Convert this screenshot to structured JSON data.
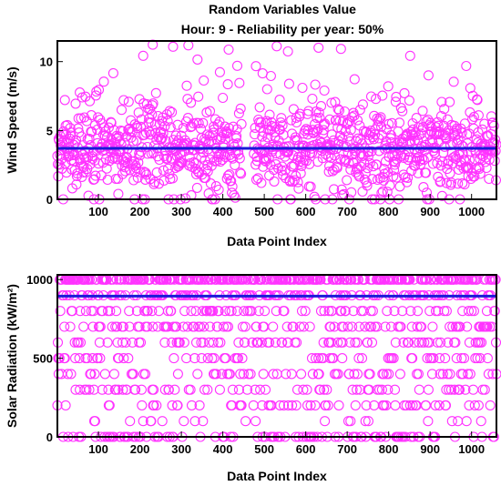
{
  "figure": {
    "title": "Random Variables Value",
    "subtitle": "Hour: 9 - Reliability per year: 50%"
  },
  "chart_data": [
    {
      "type": "scatter",
      "xlabel": "Data Point Index",
      "ylabel": "Wind Speed (m/s)",
      "xlim": [
        1,
        1060
      ],
      "ylim": [
        0,
        11.5
      ],
      "xticks": [
        100,
        200,
        300,
        400,
        500,
        600,
        700,
        800,
        900,
        1000
      ],
      "yticks": [
        0,
        5,
        10
      ],
      "n_points": 1060,
      "gap": [
        445,
        475
      ],
      "series": [
        {
          "marker": "open-circle",
          "color": "#ff33ff",
          "distribution": {
            "mean": 3.7,
            "std": 1.6,
            "min": 0,
            "max": 11.5
          }
        },
        {
          "marker": "line",
          "color": "#1a1ad8",
          "value": 3.7
        }
      ],
      "grid": false
    },
    {
      "type": "scatter",
      "xlabel": "Data Point Index",
      "ylabel": "Solar Radiation (kW/m²)",
      "xlim": [
        1,
        1060
      ],
      "ylim": [
        0,
        1030
      ],
      "xticks": [
        100,
        200,
        300,
        400,
        500,
        600,
        700,
        800,
        900,
        1000
      ],
      "yticks": [
        0,
        500,
        1000
      ],
      "n_points": 1060,
      "series": [
        {
          "marker": "open-circle",
          "color": "#ff33ff",
          "levels": [
            0,
            100,
            200,
            300,
            400,
            500,
            600,
            700,
            800,
            900,
            1000
          ],
          "weights": [
            8,
            3,
            5,
            6,
            6,
            6,
            7,
            8,
            8,
            14,
            29
          ]
        },
        {
          "marker": "line",
          "color": "#1a1ad8",
          "value": 895
        }
      ],
      "grid": false
    }
  ]
}
